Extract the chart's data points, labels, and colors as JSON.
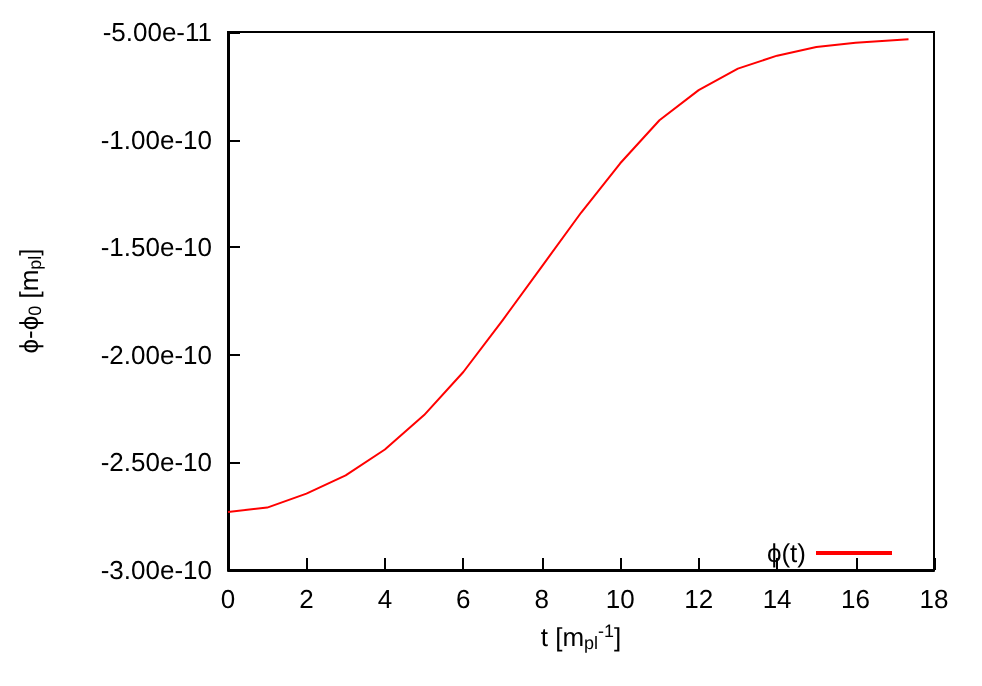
{
  "chart_data": {
    "type": "line",
    "xlabel": "t [m$_{pl}$$^{-1}$]",
    "ylabel": "ϕ-ϕ$_{0}$ [m$_{pl}$]",
    "x": [
      0,
      1,
      2,
      3,
      4,
      5,
      6,
      7,
      8,
      9,
      10,
      11,
      12,
      13,
      14,
      15,
      16,
      17.35
    ],
    "series": [
      {
        "name": "ϕ(t)",
        "color": "#ff0000",
        "values": [
          -2.73e-10,
          -2.71e-10,
          -2.645e-10,
          -2.56e-10,
          -2.44e-10,
          -2.28e-10,
          -2.08e-10,
          -1.84e-10,
          -1.59e-10,
          -1.34e-10,
          -1.11e-10,
          -9.1e-11,
          -7.7e-11,
          -6.7e-11,
          -6.1e-11,
          -5.7e-11,
          -5.5e-11,
          -5.34e-11
        ]
      }
    ],
    "xlim": [
      0,
      18
    ],
    "xticks": [
      0,
      2,
      4,
      6,
      8,
      10,
      12,
      14,
      16,
      18
    ],
    "ylim": [
      -3e-10,
      -5e-11
    ],
    "yticks": [
      {
        "value": -3e-10,
        "label": "-3.00e-10"
      },
      {
        "value": -2.5e-10,
        "label": "-2.50e-10"
      },
      {
        "value": -2e-10,
        "label": "-2.00e-10"
      },
      {
        "value": -1.5e-10,
        "label": "-1.50e-10"
      },
      {
        "value": -1e-10,
        "label": "-1.00e-10"
      },
      {
        "value": -5e-11,
        "label": "-5.00e-11"
      }
    ],
    "grid": false,
    "legend": "bottom right",
    "marker": "none",
    "line_style": "solid"
  }
}
